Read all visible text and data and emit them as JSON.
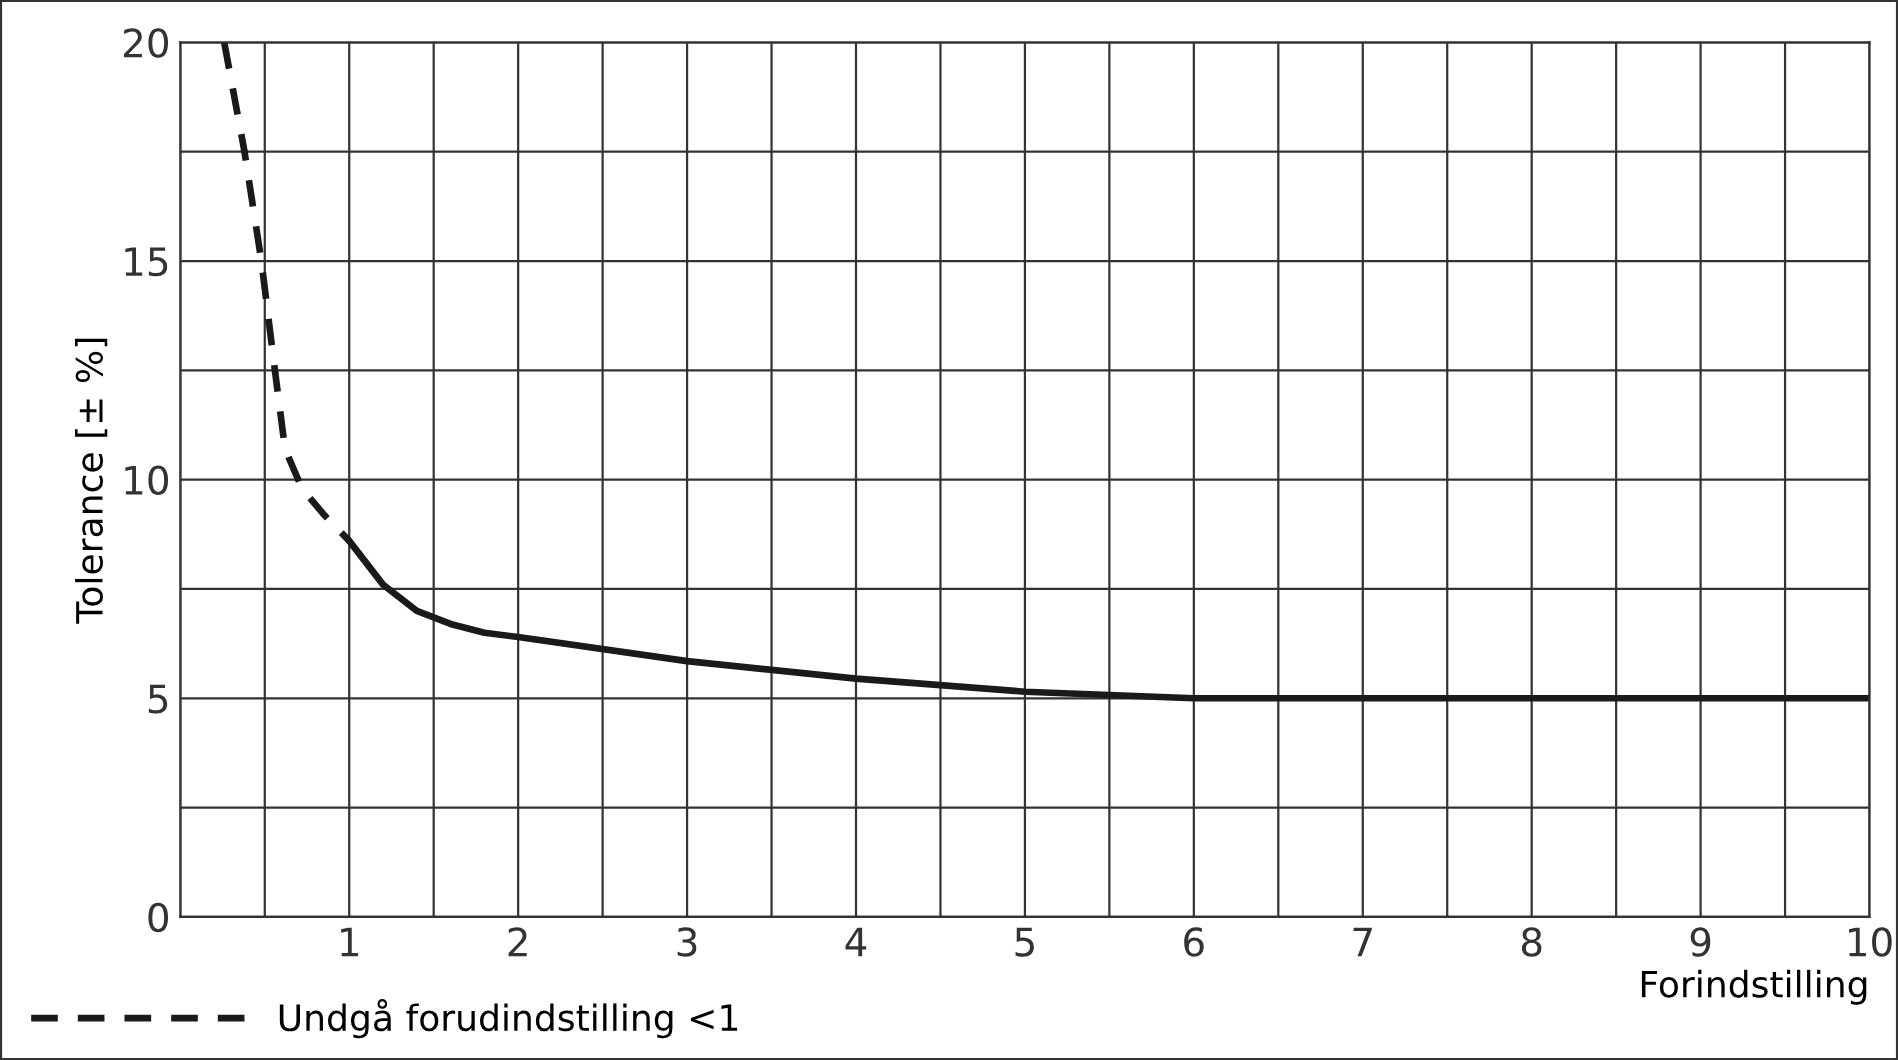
{
  "chart_data": {
    "type": "line",
    "xlabel": "Forindstilling",
    "ylabel": "Tolerance [± %]",
    "xlim": [
      0,
      10
    ],
    "ylim": [
      0,
      20
    ],
    "xticks": [
      {
        "value": 0,
        "label": null
      },
      {
        "value": 0.5,
        "label": null
      },
      1,
      {
        "value": 1.5,
        "label": null
      },
      2,
      {
        "value": 2.5,
        "label": null
      },
      3,
      {
        "value": 3.5,
        "label": null
      },
      4,
      {
        "value": 4.5,
        "label": null
      },
      5,
      {
        "value": 5.5,
        "label": null
      },
      6,
      {
        "value": 6.5,
        "label": null
      },
      7,
      {
        "value": 7.5,
        "label": null
      },
      8,
      {
        "value": 8.5,
        "label": null
      },
      9,
      {
        "value": 9.5,
        "label": null
      },
      10
    ],
    "yticks": [
      0,
      {
        "value": 2.5,
        "label": null
      },
      5,
      {
        "value": 7.5,
        "label": null
      },
      10,
      {
        "value": 12.5,
        "label": null
      },
      15,
      {
        "value": 17.5,
        "label": null
      },
      20
    ],
    "grid": true,
    "legend": "bottom left",
    "series": [
      {
        "name": "Undgå forudindstilling <1",
        "color": "#1a1a1a",
        "line_style": "dashed",
        "x": [
          0.26,
          0.38,
          0.48,
          0.56,
          0.62,
          0.72,
          0.85,
          1.0
        ],
        "values": [
          20,
          17.5,
          15,
          12.5,
          10.7,
          9.8,
          9.2,
          8.6
        ]
      },
      {
        "color": "#1a1a1a",
        "line_style": "solid",
        "x": [
          1.0,
          1.2,
          1.4,
          1.6,
          1.8,
          2,
          3,
          4,
          5,
          6,
          10
        ],
        "values": [
          8.6,
          7.6,
          7.0,
          6.7,
          6.5,
          6.4,
          5.85,
          5.45,
          5.15,
          5.0,
          5.0
        ]
      }
    ]
  }
}
